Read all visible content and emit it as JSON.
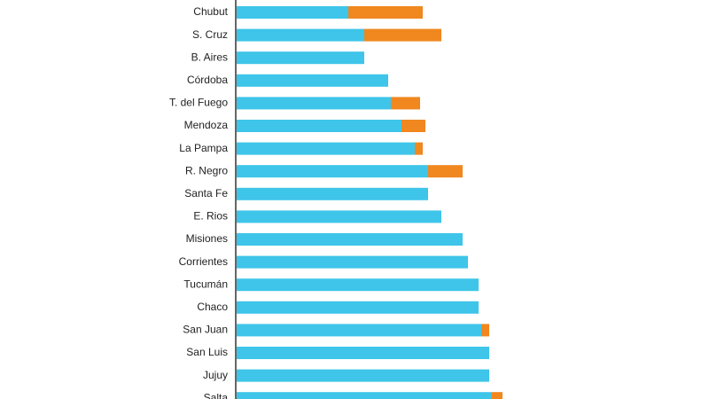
{
  "chart_data": {
    "type": "stacked-bar-horizontal",
    "categories": [
      "Chubut",
      "S. Cruz",
      "B. Aires",
      "Córdoba",
      "T. del Fuego",
      "Mendoza",
      "La Pampa",
      "R. Negro",
      "Santa Fe",
      "E. Rios",
      "Misiones",
      "Corrientes",
      "Tucumán",
      "Chaco",
      "San Juan",
      "San Luis",
      "Jujuy",
      "Salta"
    ],
    "series": [
      {
        "color": "#3ec5e9",
        "values": [
          42,
          48,
          48,
          57,
          58,
          62,
          67,
          72,
          72,
          77,
          85,
          87,
          91,
          91,
          92,
          95,
          95,
          96
        ]
      },
      {
        "color": "#f0871f",
        "values": [
          28,
          29,
          null,
          null,
          11,
          9,
          3,
          13,
          null,
          null,
          null,
          null,
          null,
          null,
          3,
          null,
          null,
          4
        ]
      }
    ]
  }
}
